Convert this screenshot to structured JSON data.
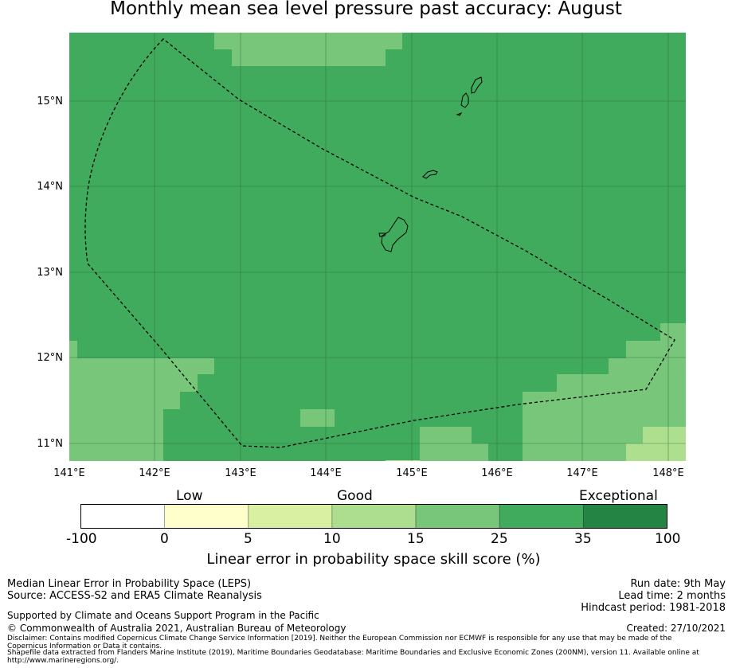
{
  "title": "Monthly mean sea level pressure past accuracy: August",
  "map": {
    "lon_labels": [
      "141°E",
      "142°E",
      "143°E",
      "144°E",
      "145°E",
      "146°E",
      "147°E",
      "148°E"
    ],
    "lat_labels": [
      "15°N",
      "14°N",
      "13°N",
      "12°N",
      "11°N"
    ],
    "colors": {
      "skill_15_25": "#77c67a",
      "skill_25_35": "#41ab5d",
      "skill_10_15": "#addf8e",
      "gridline": "#2a6b3a",
      "boundary": "#000000"
    }
  },
  "colorbar": {
    "categories": [
      "Low",
      "Good",
      "Exceptional"
    ],
    "tick_labels": [
      "-100",
      "0",
      "5",
      "10",
      "15",
      "25",
      "35",
      "100"
    ],
    "colors": [
      "#ffffff",
      "#ffffcc",
      "#d9f0a3",
      "#addd8e",
      "#78c679",
      "#41ab5d",
      "#238443"
    ],
    "label": "Linear error in probability space skill score (%)"
  },
  "footer": {
    "left_line1": "Median Linear Error in Probability Space (LEPS)",
    "left_line2": "Source: ACCESS-S2 and ERA5 Climate Reanalysis",
    "supported": "Supported by Climate and Oceans Support Program in the Pacific",
    "copyright": "© Commonwealth of Australia 2021, Australian Bureau of Meteorology",
    "disclaimer": "Disclaimer: Contains modified Copernicus Climate Change Service Information [2019]. Neither the European Commission nor ECMWF is responsible for any use that may be made of the Copernicus Information or Data it contains.",
    "shapefile": "Shapefile data extracted from Flanders Marine Institute (2019), Maritime Boundaries Geodatabase: Maritime Boundaries and Exclusive Economic Zones (200NM), version 11. Available online at http://www.marineregions.org/.",
    "run_date": "Run date: 9th May",
    "lead_time": "Lead time: 2 months",
    "hindcast": "Hindcast period: 1981-2018",
    "created": "Created: 27/10/2021"
  }
}
